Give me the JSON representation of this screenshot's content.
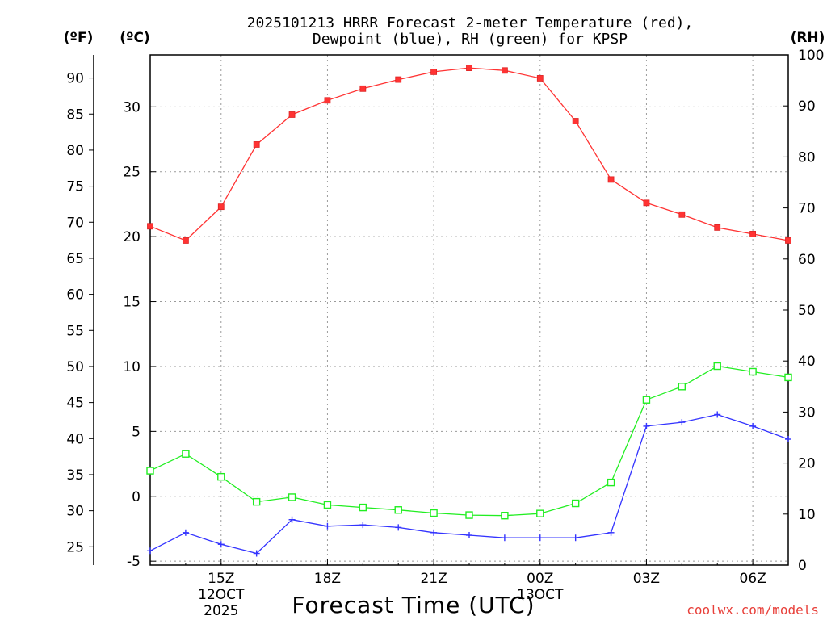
{
  "chart_data": {
    "type": "line",
    "title_lines": [
      "2025101213 HRRR Forecast 2-meter Temperature (red),",
      "Dewpoint (blue), RH (green) for KPSP"
    ],
    "units": {
      "fahrenheit": "(ºF)",
      "celsius": "(ºC)",
      "rh": "(RH)"
    },
    "xlabel": "Forecast Time (UTC)",
    "credit": "coolwx.com/models",
    "x_hours": [
      13,
      14,
      15,
      16,
      17,
      18,
      19,
      20,
      21,
      22,
      23,
      24,
      25,
      26,
      27,
      28,
      29,
      30,
      31
    ],
    "x_range": [
      13,
      31
    ],
    "x_ticks": [
      {
        "hour": 15,
        "lines": [
          "15Z",
          "12OCT",
          "2025"
        ]
      },
      {
        "hour": 18,
        "lines": [
          "18Z"
        ]
      },
      {
        "hour": 21,
        "lines": [
          "21Z"
        ]
      },
      {
        "hour": 24,
        "lines": [
          "00Z",
          "13OCT"
        ]
      },
      {
        "hour": 27,
        "lines": [
          "03Z"
        ]
      },
      {
        "hour": 30,
        "lines": [
          "06Z"
        ]
      }
    ],
    "celsius_range": [
      -5.3,
      34.0
    ],
    "celsius_ticks": [
      "-5",
      "0",
      "5",
      "10",
      "15",
      "20",
      "25",
      "30"
    ],
    "fahrenheit_ticks": [
      "25",
      "30",
      "35",
      "40",
      "45",
      "50",
      "55",
      "60",
      "65",
      "70",
      "75",
      "80",
      "85",
      "90"
    ],
    "rh_range": [
      0,
      100
    ],
    "rh_ticks": [
      "0",
      "10",
      "20",
      "30",
      "40",
      "50",
      "60",
      "70",
      "80",
      "90",
      "100"
    ],
    "series": [
      {
        "name": "Temperature",
        "axis": "celsius",
        "color": "#ff3333",
        "marker": "filled-square",
        "values": [
          20.8,
          19.7,
          22.3,
          27.1,
          29.4,
          30.5,
          31.4,
          32.1,
          32.7,
          33.0,
          32.8,
          32.2,
          28.9,
          24.4,
          22.6,
          21.7,
          20.7,
          20.2,
          19.7
        ]
      },
      {
        "name": "Dewpoint",
        "axis": "celsius",
        "color": "#3333ff",
        "marker": "plus",
        "values": [
          -4.2,
          -2.8,
          -3.7,
          -4.4,
          -1.8,
          -2.3,
          -2.2,
          -2.4,
          -2.8,
          -3.0,
          -3.2,
          -3.2,
          -3.2,
          -2.8,
          5.4,
          5.7,
          6.3,
          5.4,
          4.4
        ]
      },
      {
        "name": "RH",
        "axis": "rh",
        "color": "#22ee22",
        "marker": "open-square",
        "values": [
          18.5,
          21.8,
          17.3,
          12.4,
          13.3,
          11.8,
          11.3,
          10.8,
          10.2,
          9.8,
          9.7,
          10.1,
          12.1,
          16.2,
          32.4,
          35.0,
          39.0,
          37.9,
          36.8
        ]
      }
    ]
  }
}
